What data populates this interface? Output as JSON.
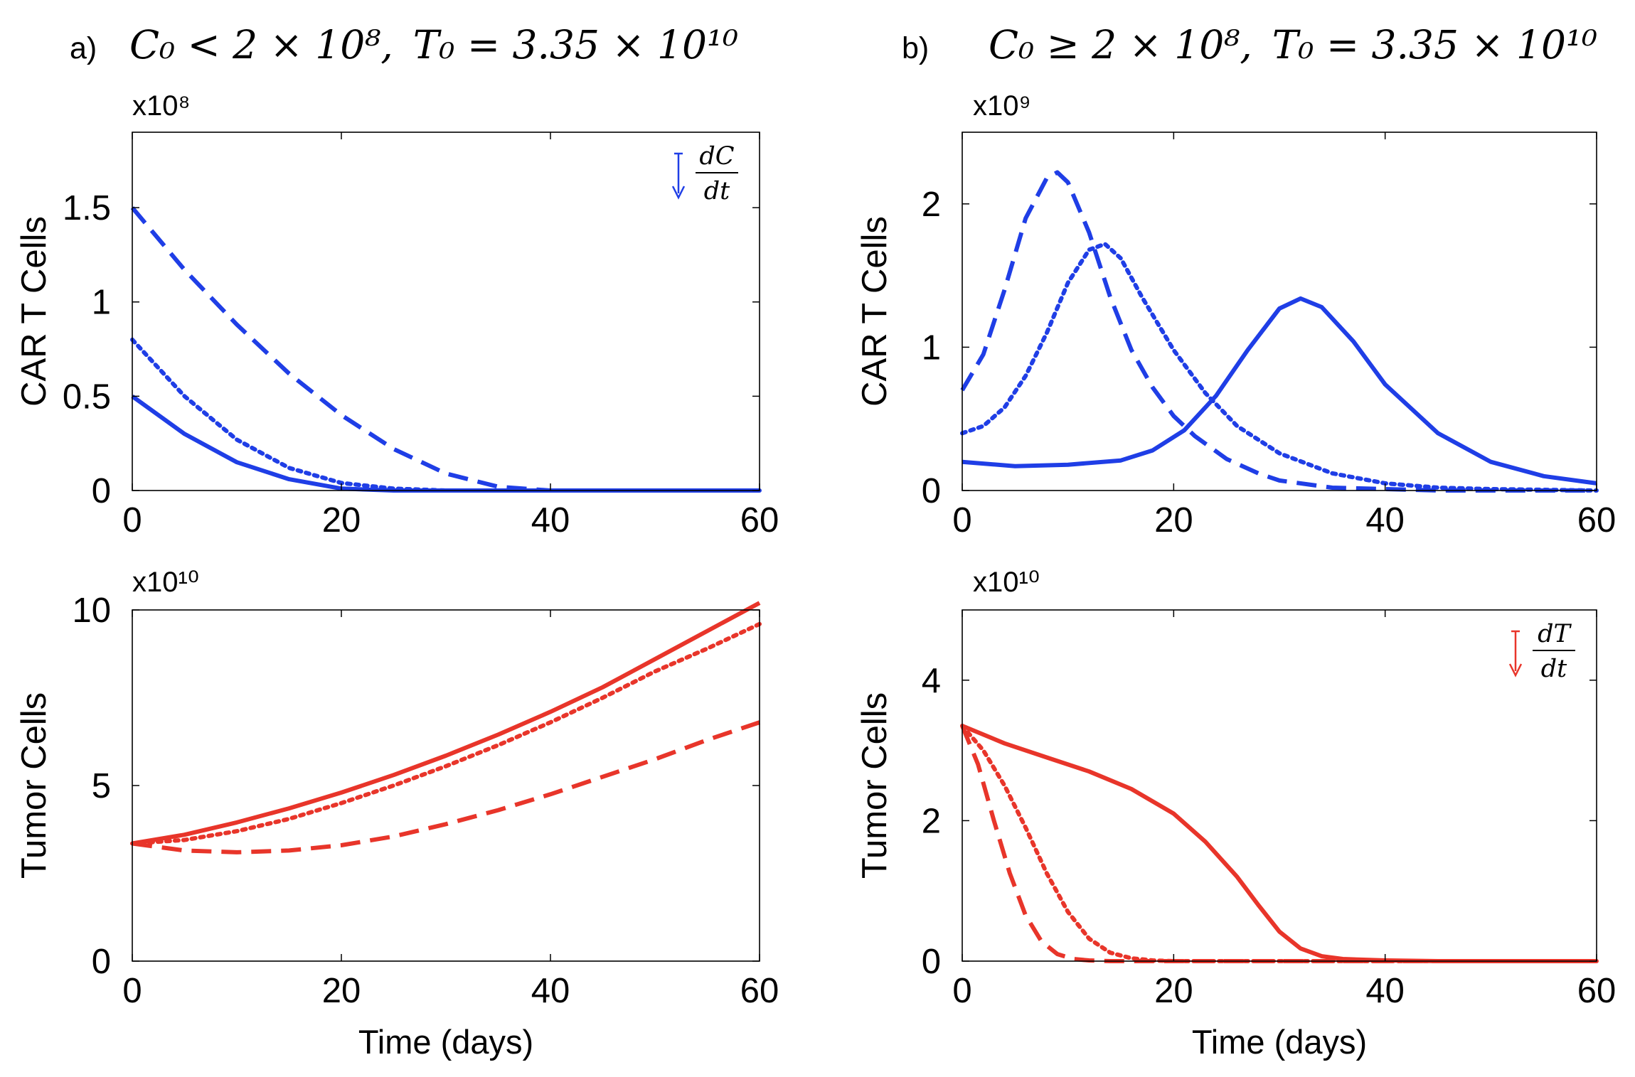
{
  "panels": [
    {
      "label": "a)",
      "title_c0": "C₀ < 2 × 10⁸,",
      "title_t0": "T₀ = 3.35 × 10¹⁰",
      "charts": [
        {
          "type": "line",
          "ylabel": "CAR T Cells",
          "multiplier": "x10⁸",
          "xlim": [
            0,
            60
          ],
          "ylim": [
            0,
            1.9
          ],
          "xticks": [
            "0",
            "20",
            "40",
            "60"
          ],
          "yticks": [
            {
              "value": 0,
              "label": "0"
            },
            {
              "value": 0.5,
              "label": "0.5"
            },
            {
              "value": 1,
              "label": "1"
            },
            {
              "value": 1.5,
              "label": "1.5"
            }
          ],
          "color": "#1f3ee6",
          "legend": {
            "position": "top-right",
            "numerator": "dC",
            "denominator": "dt",
            "arrow": "down"
          },
          "series": [
            {
              "style": "dashed",
              "x": [
                0,
                5,
                10,
                15,
                20,
                25,
                30,
                35,
                40,
                45,
                50,
                55,
                60
              ],
              "y": [
                1.5,
                1.17,
                0.88,
                0.62,
                0.4,
                0.22,
                0.09,
                0.02,
                0.0,
                0.0,
                0.0,
                0.0,
                0.0
              ]
            },
            {
              "style": "dotted",
              "x": [
                0,
                5,
                10,
                15,
                20,
                25,
                30,
                35,
                40,
                45,
                50,
                55,
                60
              ],
              "y": [
                0.8,
                0.5,
                0.27,
                0.12,
                0.04,
                0.01,
                0.0,
                0.0,
                0.0,
                0.0,
                0.0,
                0.0,
                0.0
              ]
            },
            {
              "style": "solid",
              "x": [
                0,
                5,
                10,
                15,
                20,
                25,
                30,
                35,
                40,
                45,
                50,
                55,
                60
              ],
              "y": [
                0.5,
                0.3,
                0.15,
                0.06,
                0.01,
                0.0,
                0.0,
                0.0,
                0.0,
                0.0,
                0.0,
                0.0,
                0.0
              ]
            }
          ]
        },
        {
          "type": "line",
          "ylabel": "Tumor Cells",
          "multiplier": "x10¹⁰",
          "xlabel": "Time (days)",
          "xlim": [
            0,
            60
          ],
          "ylim": [
            0,
            10
          ],
          "xticks": [
            "0",
            "20",
            "40",
            "60"
          ],
          "yticks": [
            {
              "value": 0,
              "label": "0"
            },
            {
              "value": 5,
              "label": "5"
            },
            {
              "value": 10,
              "label": "10"
            }
          ],
          "color": "#e8352a",
          "series": [
            {
              "style": "solid",
              "x": [
                0,
                5,
                10,
                15,
                20,
                25,
                30,
                35,
                40,
                45,
                50,
                55,
                60
              ],
              "y": [
                3.35,
                3.6,
                3.95,
                4.35,
                4.8,
                5.3,
                5.85,
                6.45,
                7.1,
                7.8,
                8.6,
                9.4,
                10.2
              ]
            },
            {
              "style": "dotted",
              "x": [
                0,
                5,
                10,
                15,
                20,
                25,
                30,
                35,
                40,
                45,
                50,
                55,
                60
              ],
              "y": [
                3.35,
                3.45,
                3.7,
                4.05,
                4.5,
                5.0,
                5.55,
                6.15,
                6.8,
                7.5,
                8.25,
                8.9,
                9.6
              ]
            },
            {
              "style": "dashed",
              "x": [
                0,
                5,
                10,
                15,
                20,
                25,
                30,
                35,
                40,
                45,
                50,
                55,
                60
              ],
              "y": [
                3.35,
                3.15,
                3.1,
                3.15,
                3.3,
                3.55,
                3.9,
                4.3,
                4.75,
                5.25,
                5.75,
                6.3,
                6.8
              ]
            }
          ]
        }
      ]
    },
    {
      "label": "b)",
      "title_c0": "C₀ ≥ 2 × 10⁸,",
      "title_t0": "T₀ = 3.35 × 10¹⁰",
      "charts": [
        {
          "type": "line",
          "ylabel": "CAR T Cells",
          "multiplier": "x10⁹",
          "xlim": [
            0,
            60
          ],
          "ylim": [
            0,
            2.5
          ],
          "xticks": [
            "0",
            "20",
            "40",
            "60"
          ],
          "yticks": [
            {
              "value": 0,
              "label": "0"
            },
            {
              "value": 1,
              "label": "1"
            },
            {
              "value": 2,
              "label": "2"
            }
          ],
          "color": "#1f3ee6",
          "series": [
            {
              "style": "dashed",
              "x": [
                0,
                2,
                4,
                6,
                8,
                9,
                10,
                12,
                14,
                16,
                18,
                20,
                22,
                25,
                28,
                30,
                35,
                40,
                45,
                50,
                60
              ],
              "y": [
                0.7,
                0.95,
                1.4,
                1.9,
                2.18,
                2.22,
                2.15,
                1.8,
                1.35,
                0.98,
                0.72,
                0.52,
                0.38,
                0.22,
                0.12,
                0.07,
                0.02,
                0.01,
                0.0,
                0.0,
                0.0
              ]
            },
            {
              "style": "dotted",
              "x": [
                0,
                2,
                4,
                6,
                8,
                10,
                12,
                13.5,
                15,
                17,
                20,
                23,
                26,
                30,
                35,
                40,
                45,
                50,
                60
              ],
              "y": [
                0.4,
                0.45,
                0.58,
                0.8,
                1.1,
                1.45,
                1.68,
                1.72,
                1.62,
                1.35,
                0.98,
                0.68,
                0.45,
                0.26,
                0.12,
                0.05,
                0.02,
                0.01,
                0.0
              ]
            },
            {
              "style": "solid",
              "x": [
                0,
                5,
                10,
                15,
                18,
                21,
                24,
                27,
                30,
                32,
                34,
                37,
                40,
                45,
                50,
                55,
                60
              ],
              "y": [
                0.2,
                0.17,
                0.18,
                0.21,
                0.28,
                0.42,
                0.66,
                0.98,
                1.27,
                1.34,
                1.28,
                1.04,
                0.74,
                0.4,
                0.2,
                0.1,
                0.05
              ]
            }
          ]
        },
        {
          "type": "line",
          "ylabel": "Tumor Cells",
          "multiplier": "x10¹⁰",
          "xlabel": "Time (days)",
          "xlim": [
            0,
            60
          ],
          "ylim": [
            0,
            5
          ],
          "xticks": [
            "0",
            "20",
            "40",
            "60"
          ],
          "yticks": [
            {
              "value": 0,
              "label": "0"
            },
            {
              "value": 2,
              "label": "2"
            },
            {
              "value": 4,
              "label": "4"
            }
          ],
          "color": "#e8352a",
          "legend": {
            "position": "top-right",
            "numerator": "dT",
            "denominator": "dt",
            "arrow": "down"
          },
          "series": [
            {
              "style": "solid",
              "x": [
                0,
                4,
                8,
                12,
                16,
                20,
                23,
                26,
                28,
                30,
                32,
                34,
                36,
                40,
                45,
                50,
                60
              ],
              "y": [
                3.35,
                3.1,
                2.9,
                2.7,
                2.45,
                2.1,
                1.7,
                1.2,
                0.8,
                0.42,
                0.18,
                0.07,
                0.03,
                0.01,
                0.0,
                0.0,
                0.0
              ]
            },
            {
              "style": "dotted",
              "x": [
                0,
                2,
                4,
                6,
                8,
                10,
                12,
                14,
                16,
                18,
                20,
                25,
                30,
                40,
                50,
                60
              ],
              "y": [
                3.35,
                3.0,
                2.5,
                1.9,
                1.25,
                0.7,
                0.32,
                0.12,
                0.04,
                0.01,
                0.0,
                0.0,
                0.0,
                0.0,
                0.0,
                0.0
              ]
            },
            {
              "style": "dashed",
              "x": [
                0,
                1.5,
                3,
                4.5,
                6,
                7.5,
                9,
                10.5,
                12,
                14,
                18,
                25,
                35,
                60
              ],
              "y": [
                3.35,
                2.8,
                2.0,
                1.25,
                0.65,
                0.28,
                0.1,
                0.03,
                0.01,
                0.0,
                0.0,
                0.0,
                0.0,
                0.0
              ]
            }
          ]
        }
      ]
    }
  ]
}
